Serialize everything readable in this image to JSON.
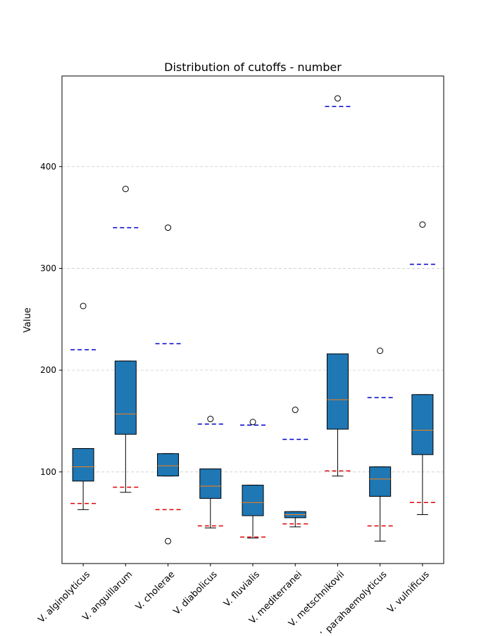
{
  "chart_data": {
    "type": "box",
    "title": "Distribution of cutoffs - number",
    "xlabel": "",
    "ylabel": "Value",
    "ylim": [
      10,
      489
    ],
    "yticks": [
      100,
      200,
      300,
      400
    ],
    "grid": "y-dashed",
    "colors": {
      "box_fill": "#1f77b4",
      "median": "#ff7f0e",
      "upper_threshold": "#0000cc",
      "lower_threshold": "#dd0000",
      "grid": "#cccccc"
    },
    "categories": [
      "V. alginolyticus",
      "V. anguillarum",
      "V. cholerae",
      "V. diabolicus",
      "V. fluvialis",
      "V. mediterranei",
      "V. metschnikovii",
      "V. parahaemolyticus",
      "V. vulnificus"
    ],
    "boxes": [
      {
        "whisker_low": 63,
        "q1": 91,
        "median": 105,
        "q3": 123,
        "whisker_high": 123,
        "outliers": [
          263
        ],
        "upper_threshold": 220,
        "lower_threshold": 69
      },
      {
        "whisker_low": 80,
        "q1": 137,
        "median": 157,
        "q3": 209,
        "whisker_high": 209,
        "outliers": [
          378
        ],
        "upper_threshold": 340,
        "lower_threshold": 85
      },
      {
        "whisker_low": 96,
        "q1": 96,
        "median": 106,
        "q3": 118,
        "whisker_high": 118,
        "outliers": [
          340,
          32
        ],
        "upper_threshold": 226,
        "lower_threshold": 63
      },
      {
        "whisker_low": 45,
        "q1": 74,
        "median": 86,
        "q3": 103,
        "whisker_high": 103,
        "outliers": [
          152
        ],
        "upper_threshold": 147,
        "lower_threshold": 47
      },
      {
        "whisker_low": 35,
        "q1": 57,
        "median": 70,
        "q3": 87,
        "whisker_high": 87,
        "outliers": [
          149
        ],
        "upper_threshold": 146,
        "lower_threshold": 36
      },
      {
        "whisker_low": 46,
        "q1": 55,
        "median": 58,
        "q3": 61,
        "whisker_high": 61,
        "outliers": [
          161
        ],
        "upper_threshold": 132,
        "lower_threshold": 49
      },
      {
        "whisker_low": 96,
        "q1": 142,
        "median": 171,
        "q3": 216,
        "whisker_high": 216,
        "outliers": [
          467
        ],
        "upper_threshold": 459,
        "lower_threshold": 101
      },
      {
        "whisker_low": 32,
        "q1": 76,
        "median": 93,
        "q3": 105,
        "whisker_high": 105,
        "outliers": [
          219
        ],
        "upper_threshold": 173,
        "lower_threshold": 47
      },
      {
        "whisker_low": 58,
        "q1": 117,
        "median": 141,
        "q3": 176,
        "whisker_high": 176,
        "outliers": [
          343
        ],
        "upper_threshold": 304,
        "lower_threshold": 70
      }
    ]
  }
}
